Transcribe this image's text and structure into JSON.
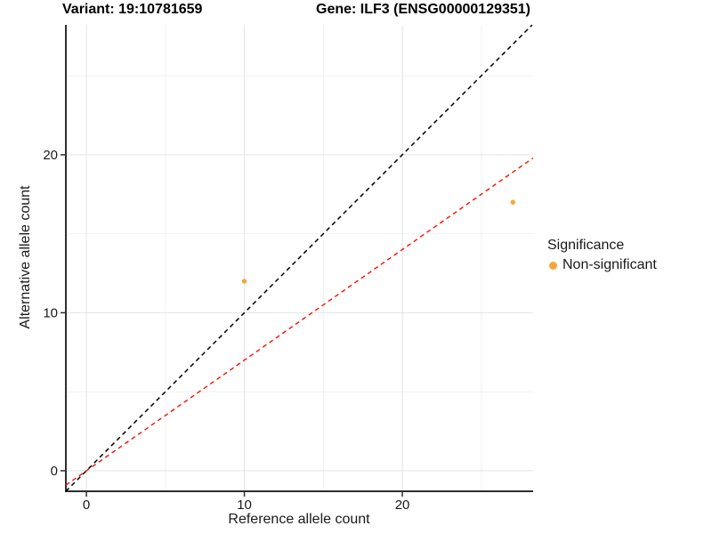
{
  "titles": {
    "variant": "Variant: 19:10781659",
    "gene": "Gene: ILF3 (ENSG00000129351)"
  },
  "legend": {
    "title": "Significance",
    "items": [
      {
        "label": "Non-significant",
        "color": "#F9A43C"
      }
    ]
  },
  "chart_data": {
    "type": "scatter",
    "title": "Variant: 19:10781659   Gene: ILF3 (ENSG00000129351)",
    "xlabel": "Reference allele count",
    "ylabel": "Alternative allele count",
    "xlim": [
      -1.3,
      28.28
    ],
    "ylim": [
      -1.3,
      28.22
    ],
    "x_ticks": [
      0,
      10,
      20
    ],
    "y_ticks": [
      0,
      10,
      20
    ],
    "x_minor_ticks": [
      5,
      15,
      25
    ],
    "y_minor_ticks": [
      5,
      15,
      25
    ],
    "grid": true,
    "legend_position": "right",
    "series": [
      {
        "name": "Non-significant",
        "color": "#F9A43C",
        "point_radius": 2.7,
        "points": [
          [
            10,
            12
          ],
          [
            27,
            17
          ]
        ]
      }
    ],
    "lines": [
      {
        "name": "identity-line",
        "slope": 1.0,
        "intercept": 0,
        "style": "dashed",
        "color": "#000000",
        "width": 1.5
      },
      {
        "name": "fit-line",
        "slope": 0.7,
        "intercept": 0,
        "style": "dashed",
        "color": "#FA0F00",
        "width": 1.4
      }
    ],
    "colors": {
      "grid_major": "#E4E4E4",
      "grid_minor": "#F1F1F1",
      "axis_line": "#2E2E2E",
      "tick_label": "#1a1a1a"
    }
  }
}
